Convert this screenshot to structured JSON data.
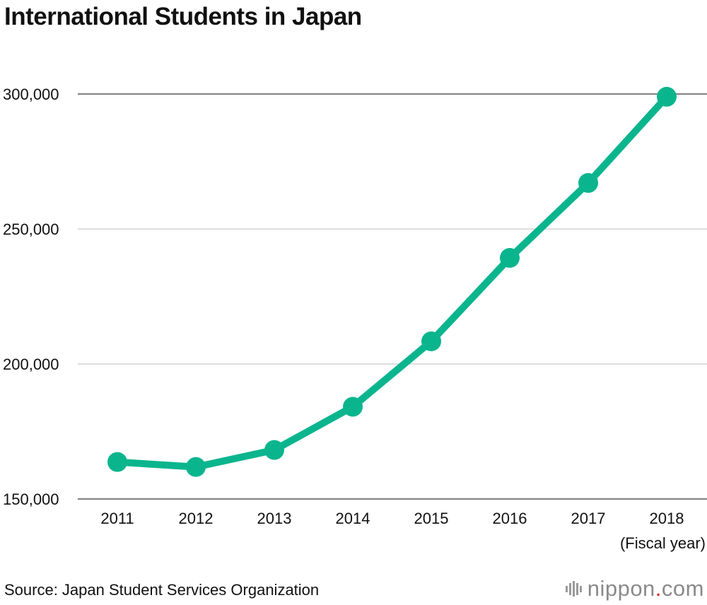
{
  "chart_data": {
    "type": "line",
    "title": "International Students in Japan",
    "categories": [
      "2011",
      "2012",
      "2013",
      "2014",
      "2015",
      "2016",
      "2017",
      "2018"
    ],
    "series": [
      {
        "values": [
          163697,
          161848,
          168145,
          184155,
          208379,
          239287,
          267042,
          298980
        ]
      }
    ],
    "y_ticks": [
      150000,
      200000,
      250000,
      300000
    ],
    "y_tick_labels": [
      "150,000",
      "200,000",
      "250,000",
      "300,000"
    ],
    "ylim": [
      150000,
      300000
    ],
    "xlabel": "(Fiscal year)",
    "ylabel": "",
    "grid": true,
    "legend": "none",
    "line_color": "#0ab58e"
  },
  "source": "Source: Japan Student Services Organization",
  "brand": {
    "name": "nippon",
    "dot": ".",
    "suffix": "com",
    "icon": "nippon-bars-logo"
  }
}
